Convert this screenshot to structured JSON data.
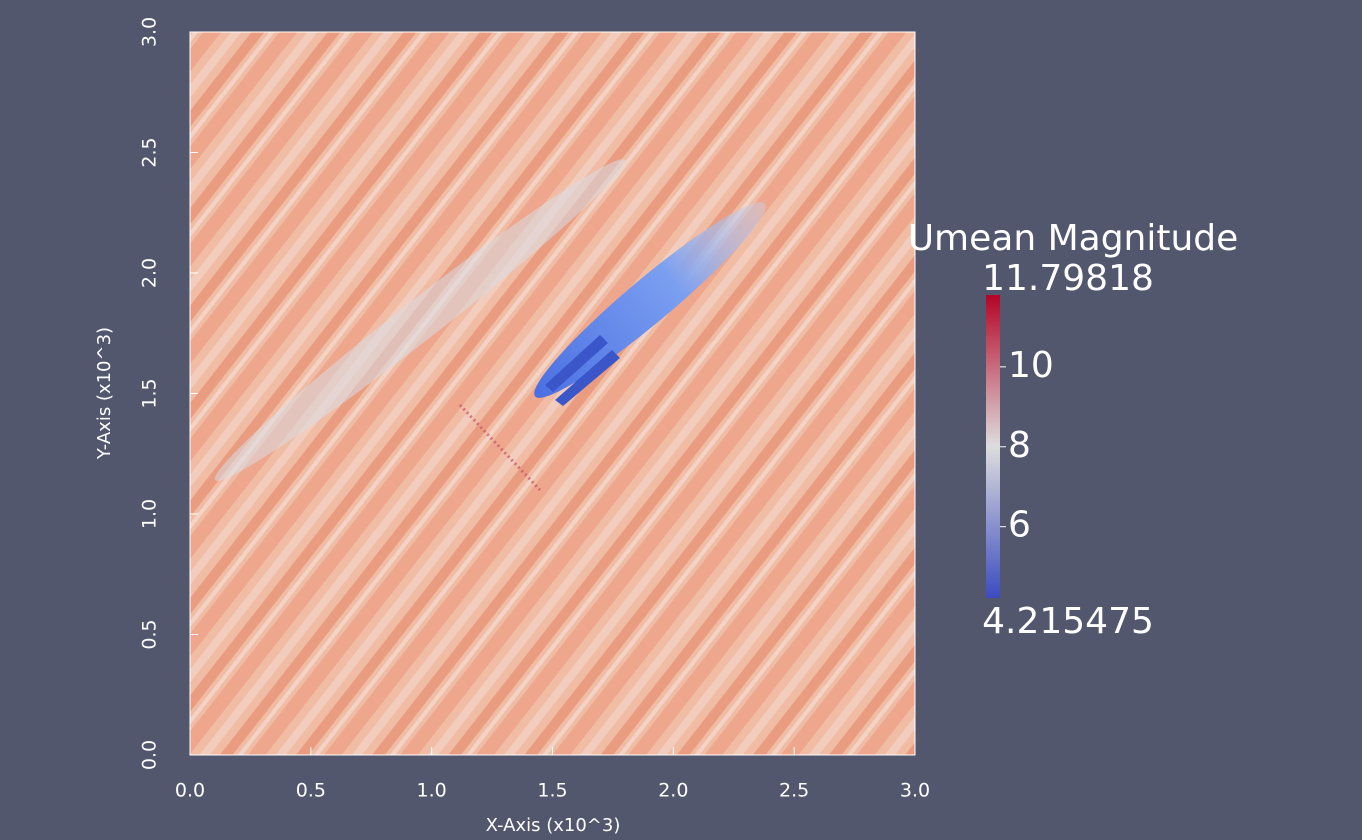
{
  "chart_data": {
    "type": "field",
    "x_label": "X-Axis (x10^3)",
    "y_label": "Y-Axis (x10^3)",
    "xlim": [
      0,
      3
    ],
    "ylim": [
      0,
      3
    ],
    "xticks": [
      {
        "value": 0,
        "label": "0.0"
      },
      0.5,
      {
        "value": 1,
        "label": "1.0"
      },
      1.5,
      {
        "value": 2,
        "label": "2.0"
      },
      2.5,
      {
        "value": 3,
        "label": "3.0"
      }
    ],
    "yticks": [
      {
        "value": 0,
        "label": "0.0"
      },
      0.5,
      {
        "value": 1,
        "label": "1.0"
      },
      1.5,
      {
        "value": 2,
        "label": "2.0"
      },
      2.5,
      {
        "value": 3,
        "label": "3.0"
      }
    ],
    "colorbar": {
      "title": "Umean Magnitude",
      "range": [
        4.215475,
        11.79818
      ],
      "ticks": [
        6,
        8,
        10
      ],
      "colors": [
        "#3b4cc0",
        "#dddddd",
        "#b40426"
      ]
    }
  }
}
